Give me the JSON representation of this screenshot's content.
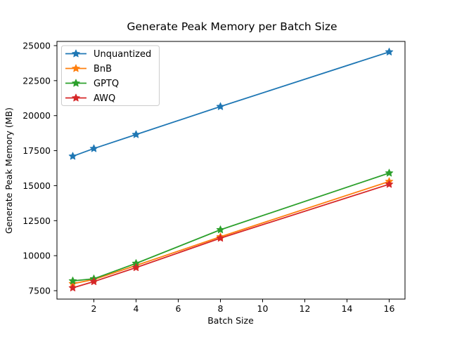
{
  "figure": {
    "background": "#ffffff",
    "spine_color": "#000000"
  },
  "chart_data": {
    "type": "line",
    "title": "Generate Peak Memory per Batch Size",
    "xlabel": "Batch Size",
    "ylabel": "Generate Peak Memory (MB)",
    "x": [
      1,
      2,
      4,
      8,
      16
    ],
    "series": [
      {
        "name": "Unquantized",
        "color": "#1f77b4",
        "values": [
          17100,
          17650,
          18650,
          20650,
          24550
        ]
      },
      {
        "name": "BnB",
        "color": "#ff7f0e",
        "values": [
          8000,
          8300,
          9300,
          11350,
          15300
        ]
      },
      {
        "name": "GPTQ",
        "color": "#2ca02c",
        "values": [
          8200,
          8350,
          9450,
          11850,
          15900
        ]
      },
      {
        "name": "AWQ",
        "color": "#d62728",
        "values": [
          7700,
          8150,
          9150,
          11250,
          15100
        ]
      }
    ],
    "marker": "star",
    "xlim": [
      0.25,
      16.75
    ],
    "ylim": [
      6900,
      25300
    ],
    "x_ticks": [
      2,
      4,
      6,
      8,
      10,
      12,
      14,
      16
    ],
    "y_ticks": [
      7500,
      10000,
      12500,
      15000,
      17500,
      20000,
      22500,
      25000
    ],
    "grid": false,
    "legend_position": "upper left",
    "legend_border_color": "#cccccc"
  }
}
